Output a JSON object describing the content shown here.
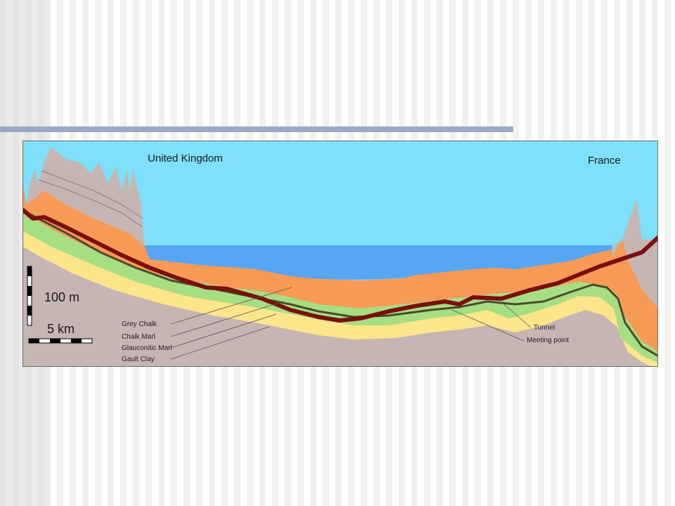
{
  "diagram": {
    "countries": {
      "left": "United Kingdom",
      "right": "France"
    },
    "scale": {
      "vertical": "100 m",
      "horizontal": "5 km"
    },
    "layers": [
      {
        "name": "Grey Chalk",
        "color": "#f79a56"
      },
      {
        "name": "Chalk Marl",
        "color": "#a6de82"
      },
      {
        "name": "Glauconitic Marl",
        "color": "#4a4a2e"
      },
      {
        "name": "Gault Clay",
        "color": "#fde58a"
      }
    ],
    "callouts": {
      "tunnel": "Tunnel",
      "meeting_point": "Meeting point"
    },
    "colors": {
      "sky": "#7fe0f9",
      "sea": "#56a6f4",
      "bedrock": "#c5b6b4",
      "tunnel": "#7a0f0f",
      "title_rule": "#9aaac4"
    }
  }
}
